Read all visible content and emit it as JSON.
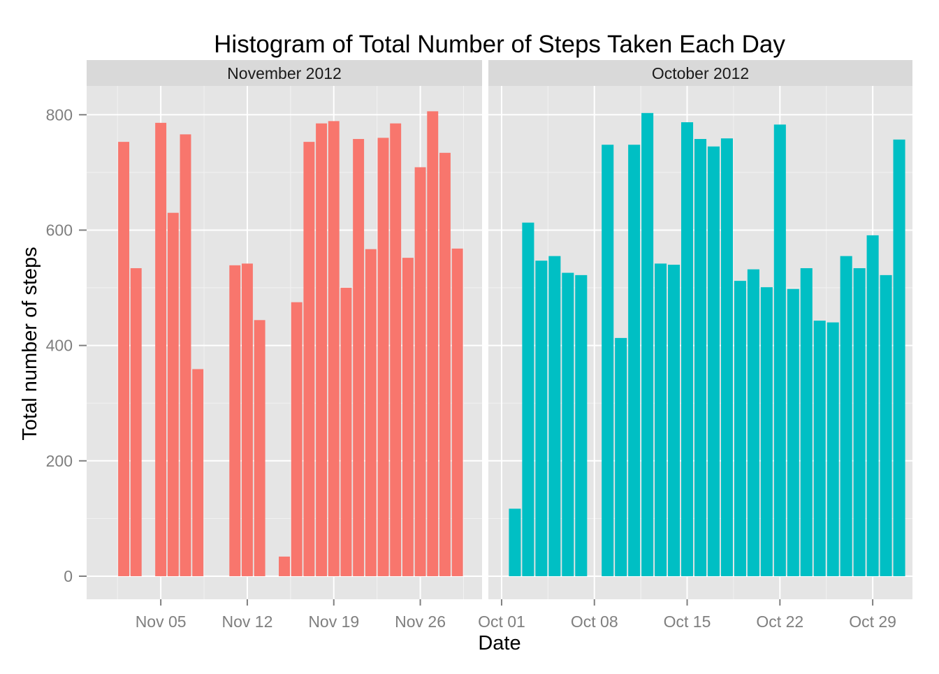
{
  "chart_data": {
    "type": "bar",
    "title": "Histogram of Total Number of Steps Taken Each Day",
    "xlabel": "Date",
    "ylabel": "Total number of steps",
    "ylim": [
      -40,
      850
    ],
    "y_ticks": [
      0,
      200,
      400,
      600,
      800
    ],
    "y_tick_labels": [
      "0",
      "200",
      "400",
      "600",
      "800"
    ],
    "grid": true,
    "legend": "none",
    "facets": [
      {
        "strip_label": "November 2012",
        "color": "#F8766D",
        "xlim": [
          "2012-10-30",
          "2012-12-01"
        ],
        "x_ticks": [
          "2012-11-05",
          "2012-11-12",
          "2012-11-19",
          "2012-11-26"
        ],
        "x_tick_labels": [
          "Nov 05",
          "Nov 12",
          "Nov 19",
          "Nov 26"
        ],
        "dates": [
          "2012-11-02",
          "2012-11-03",
          "2012-11-05",
          "2012-11-06",
          "2012-11-07",
          "2012-11-08",
          "2012-11-11",
          "2012-11-12",
          "2012-11-13",
          "2012-11-15",
          "2012-11-16",
          "2012-11-17",
          "2012-11-18",
          "2012-11-19",
          "2012-11-20",
          "2012-11-21",
          "2012-11-22",
          "2012-11-23",
          "2012-11-24",
          "2012-11-25",
          "2012-11-26",
          "2012-11-27",
          "2012-11-28",
          "2012-11-29"
        ],
        "values": [
          753,
          534,
          786,
          630,
          766,
          359,
          539,
          542,
          444,
          34,
          475,
          753,
          785,
          789,
          500,
          758,
          567,
          760,
          785,
          552,
          709,
          806,
          734,
          568
        ]
      },
      {
        "strip_label": "October 2012",
        "color": "#00BFC4",
        "xlim": [
          "2012-09-30",
          "2012-11-01"
        ],
        "x_ticks": [
          "2012-10-01",
          "2012-10-08",
          "2012-10-15",
          "2012-10-22",
          "2012-10-29"
        ],
        "x_tick_labels": [
          "Oct 01",
          "Oct 08",
          "Oct 15",
          "Oct 22",
          "Oct 29"
        ],
        "dates": [
          "2012-10-02",
          "2012-10-03",
          "2012-10-04",
          "2012-10-05",
          "2012-10-06",
          "2012-10-07",
          "2012-10-09",
          "2012-10-10",
          "2012-10-11",
          "2012-10-12",
          "2012-10-13",
          "2012-10-14",
          "2012-10-15",
          "2012-10-16",
          "2012-10-17",
          "2012-10-18",
          "2012-10-19",
          "2012-10-20",
          "2012-10-21",
          "2012-10-22",
          "2012-10-23",
          "2012-10-24",
          "2012-10-25",
          "2012-10-26",
          "2012-10-27",
          "2012-10-28",
          "2012-10-29",
          "2012-10-30",
          "2012-10-31"
        ],
        "values": [
          117,
          613,
          547,
          555,
          526,
          522,
          748,
          413,
          748,
          803,
          542,
          540,
          787,
          758,
          745,
          759,
          512,
          532,
          501,
          783,
          498,
          534,
          443,
          440,
          555,
          534,
          591,
          522,
          757
        ]
      }
    ]
  }
}
